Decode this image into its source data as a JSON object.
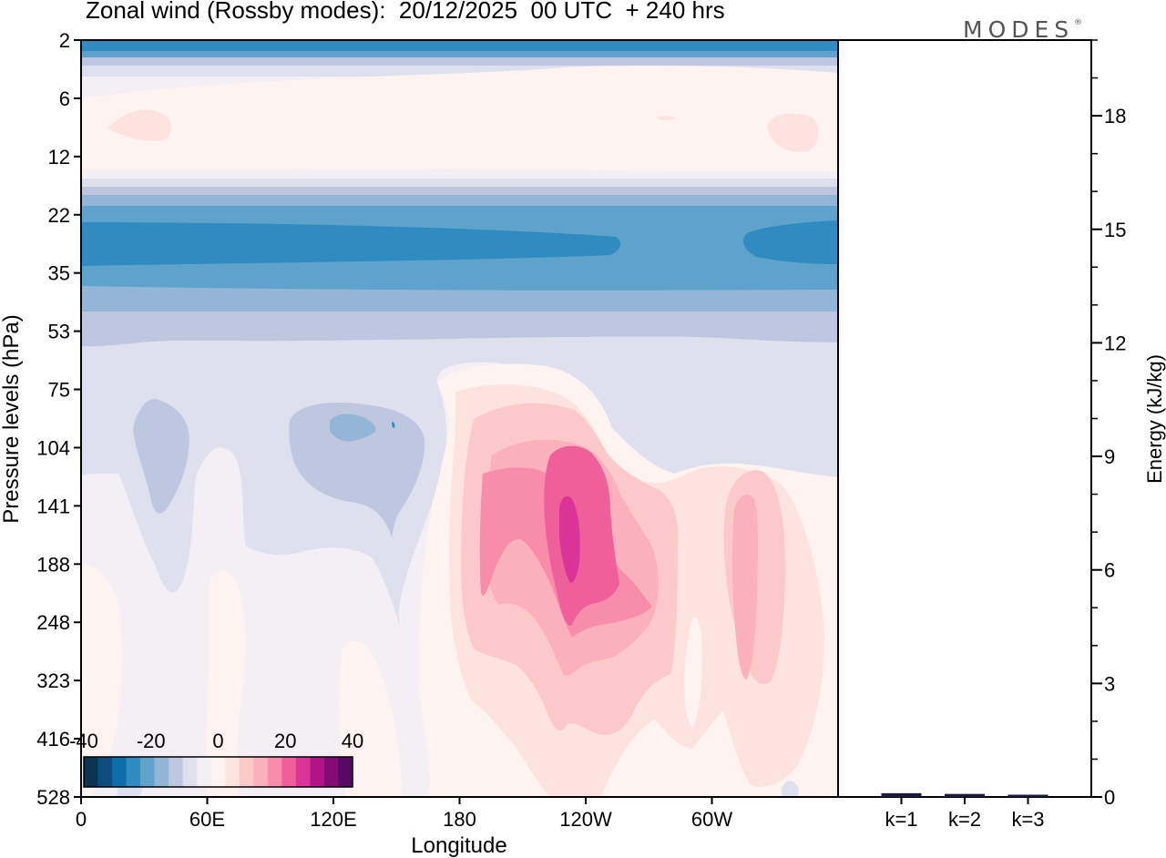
{
  "header": {
    "title": "Zonal wind (Rossby modes):  20/12/2025  00 UTC  + 240 hrs",
    "logo": "MODES",
    "logo_mark": "®"
  },
  "chart_data": [
    {
      "type": "heatmap",
      "title": "Zonal wind (Rossby modes):  20/12/2025  00 UTC  + 240 hrs",
      "xlabel": "Longitude",
      "ylabel": "Pressure levels (hPa)",
      "x_tick_labels": [
        "0",
        "60E",
        "120E",
        "180",
        "120W",
        "60W"
      ],
      "y_tick_labels": [
        "2",
        "6",
        "12",
        "22",
        "35",
        "53",
        "75",
        "104",
        "141",
        "188",
        "248",
        "323",
        "416",
        "528"
      ],
      "colorbar": {
        "tick_labels": [
          "-40",
          "-20",
          "0",
          "20",
          "40"
        ],
        "range": [
          -40,
          40
        ],
        "colors": [
          "#08344f",
          "#0a4d7e",
          "#0b6ea8",
          "#2f8bc0",
          "#5fa3cc",
          "#93b6d6",
          "#bfc7e0",
          "#dfe0ee",
          "#f4eef5",
          "#fdf3f1",
          "#fde3df",
          "#fcc9cb",
          "#fbb0bd",
          "#f78dab",
          "#ef609b",
          "#db3499",
          "#b01487",
          "#820c74",
          "#560a66"
        ]
      },
      "features": [
        {
          "label": "stratospheric easterly core",
          "value_approx": -22
        },
        {
          "label": "westerly maximum near 120W",
          "value_approx": 26
        }
      ]
    },
    {
      "type": "bar",
      "ylabel": "Energy (kJ/kg)",
      "categories": [
        "k=1",
        "k=2",
        "k=3"
      ],
      "values": [
        0.1,
        0.08,
        0.06
      ],
      "ylim": [
        0,
        20
      ],
      "y_tick_labels": [
        "0",
        "3",
        "6",
        "9",
        "12",
        "15",
        "18"
      ]
    }
  ]
}
